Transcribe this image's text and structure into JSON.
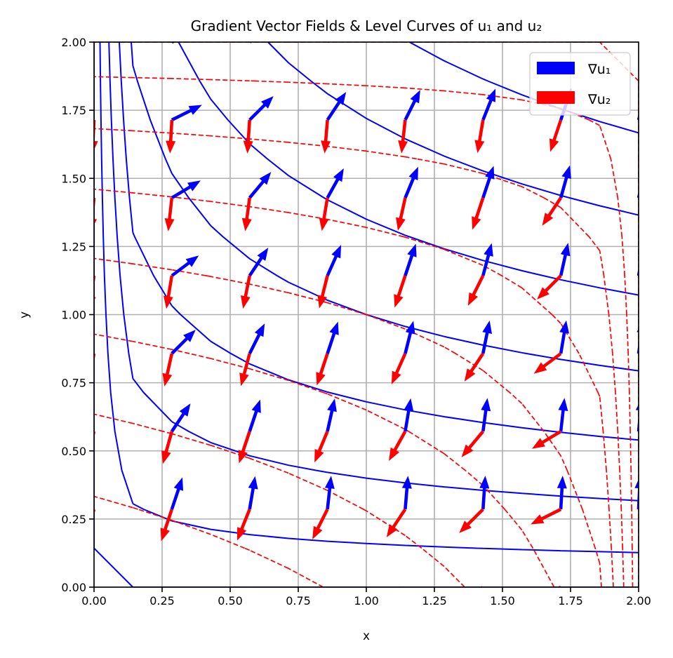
{
  "chart_data": {
    "type": "quiver+contour",
    "title": "Gradient Vector Fields & Level Curves of u₁ and u₂",
    "xlabel": "x",
    "ylabel": "y",
    "xlim": [
      0,
      2
    ],
    "ylim": [
      0,
      2
    ],
    "grid": true,
    "x_ticks": [
      "0.00",
      "0.25",
      "0.50",
      "0.75",
      "1.00",
      "1.25",
      "1.50",
      "1.75",
      "2.00"
    ],
    "y_ticks": [
      "0.00",
      "0.25",
      "0.50",
      "0.75",
      "1.00",
      "1.25",
      "1.50",
      "1.75",
      "2.00"
    ],
    "contour_grid_points": 15,
    "quiver_grid_points": 8,
    "fields": [
      {
        "name": "u1",
        "color": "#0000ff",
        "line_style": "solid",
        "origin": [
          0,
          0
        ],
        "exponent_x": 0.3333,
        "exponent_y": 1,
        "levels": [
          0,
          0.16,
          0.4,
          0.68,
          1.0,
          1.35,
          1.72,
          2.1
        ]
      },
      {
        "name": "u2",
        "color": "#ff0000",
        "line_style": "dashed",
        "origin": [
          2,
          2
        ],
        "exponent_x": 0.3333,
        "exponent_y": 1,
        "levels": [
          0,
          0.16,
          0.4,
          0.68,
          1.0,
          1.35,
          1.72,
          2.1
        ]
      }
    ],
    "legend": {
      "placement": "top-right",
      "entries": [
        {
          "label": "∇u₁",
          "color": "#0000ff"
        },
        {
          "label": "∇u₂",
          "color": "#ff0000"
        }
      ]
    }
  }
}
